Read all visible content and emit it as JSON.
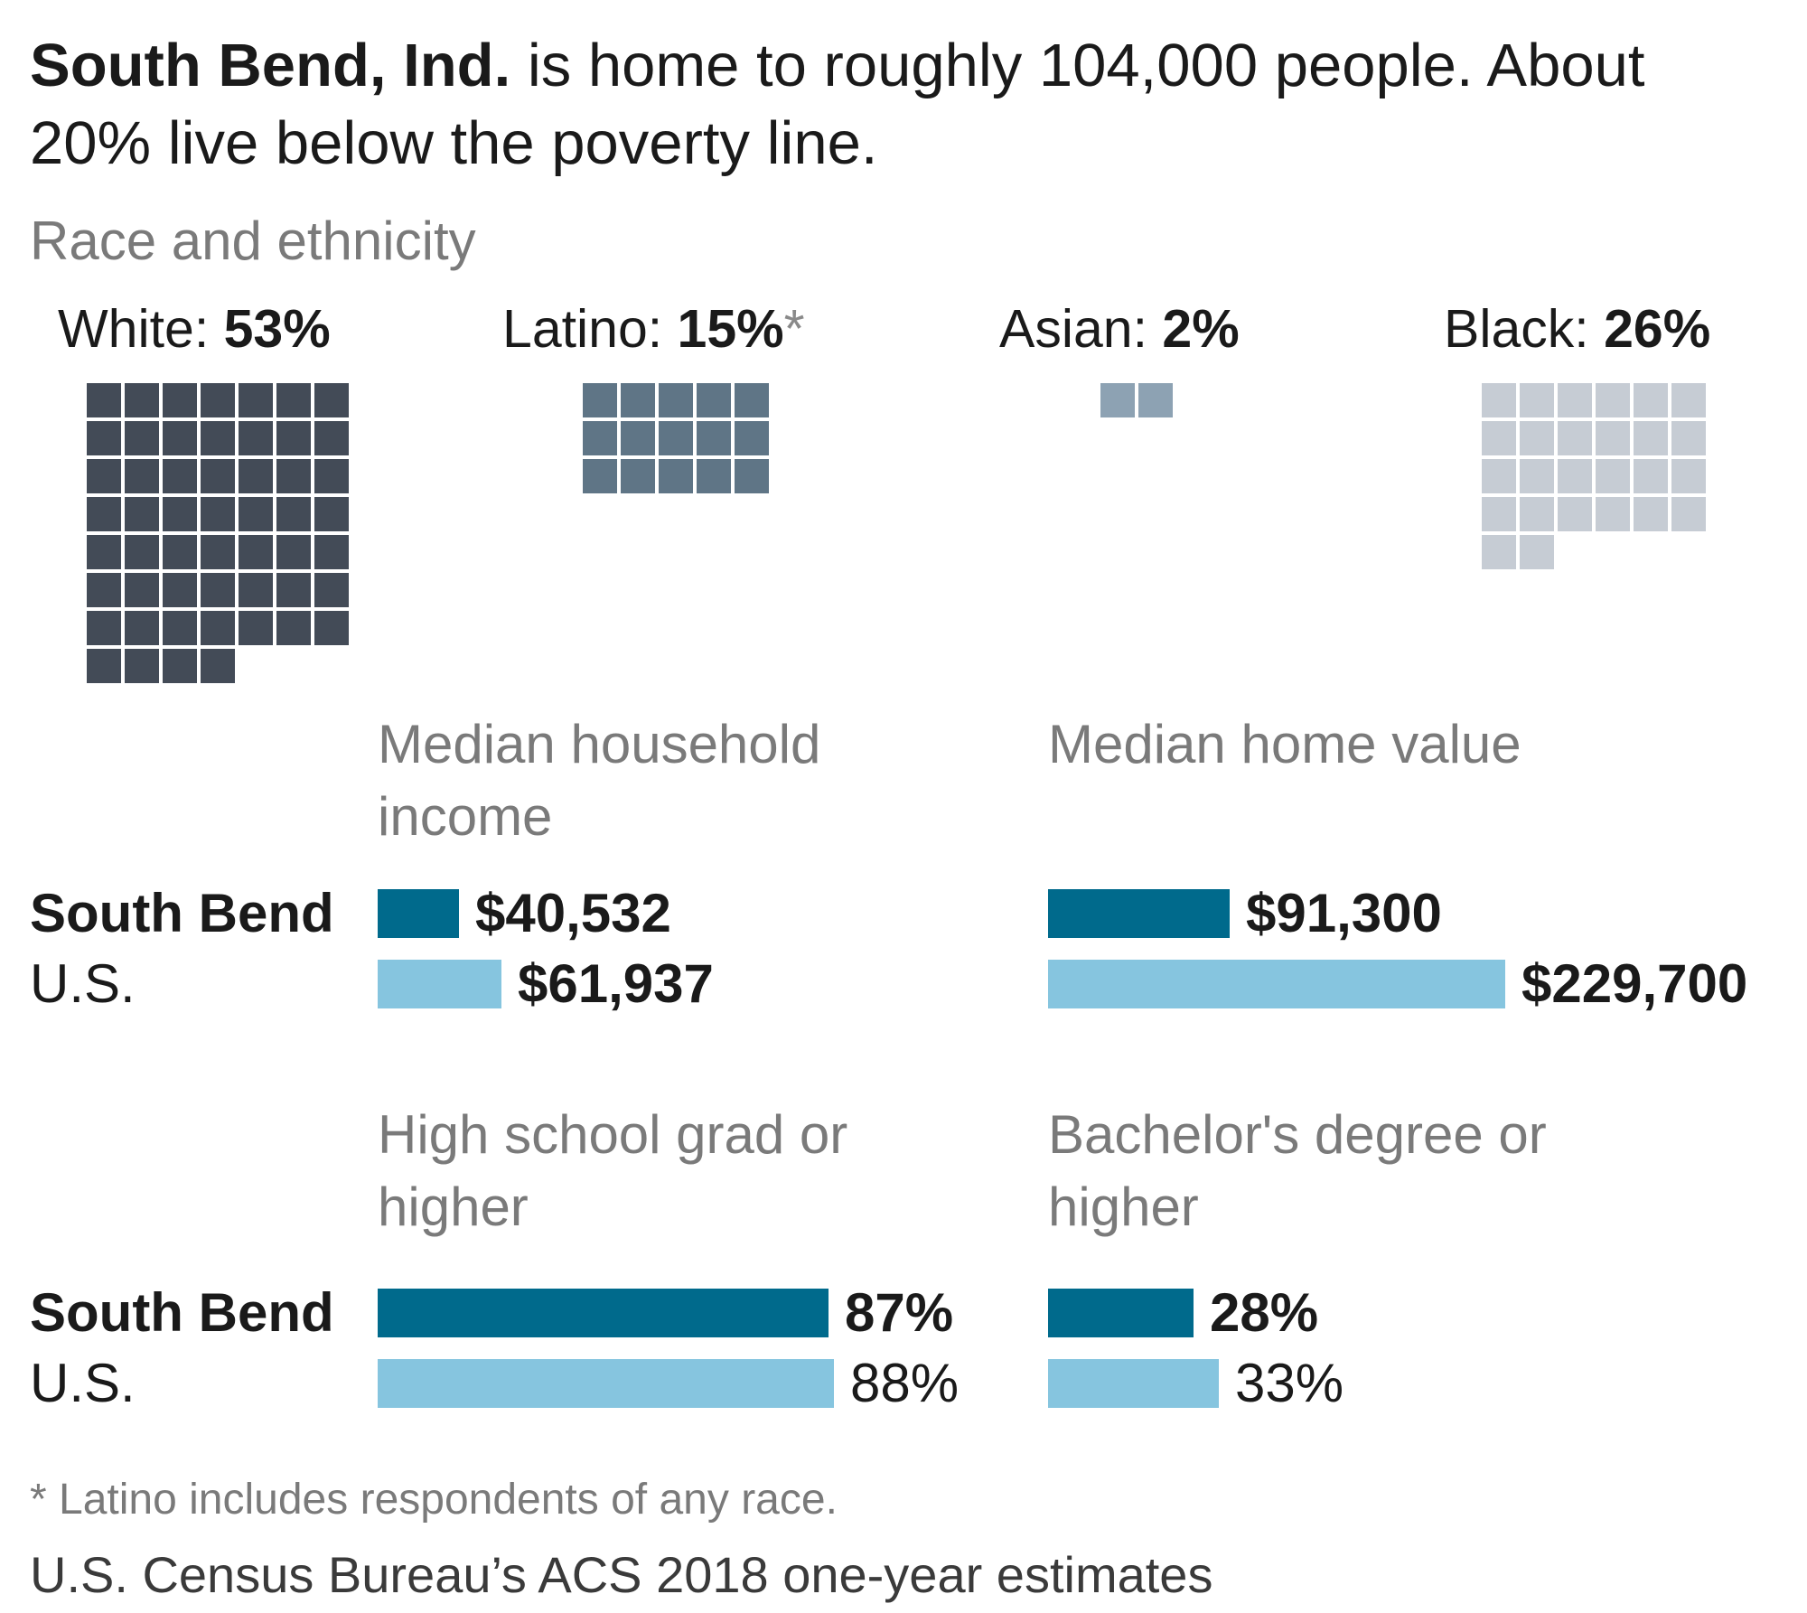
{
  "headline": {
    "bold": "South Bend, Ind.",
    "rest": " is home to roughly 104,000 people. About 20% live below the poverty line."
  },
  "race_label": "Race and ethnicity",
  "groups": [
    {
      "name": "White: ",
      "value": "53%",
      "asterisk": "",
      "cells": 53,
      "cols": 7,
      "color": "#434b57"
    },
    {
      "name": "Latino: ",
      "value": "15%",
      "asterisk": "*",
      "cells": 15,
      "cols": 5,
      "color": "#5f7586"
    },
    {
      "name": "Asian: ",
      "value": "2%",
      "asterisk": "",
      "cells": 2,
      "cols": 2,
      "color": "#8da2b3"
    },
    {
      "name": "Black: ",
      "value": "26%",
      "asterisk": "",
      "cells": 26,
      "cols": 6,
      "color": "#c6ccd4"
    }
  ],
  "row_labels": {
    "local": "South Bend",
    "us": "U.S."
  },
  "colors": {
    "local": "#006a8c",
    "us": "#86c5df"
  },
  "chart_data": [
    {
      "type": "waffle",
      "title": "Race and ethnicity",
      "categories": [
        "White",
        "Latino",
        "Asian",
        "Black"
      ],
      "values": [
        53,
        15,
        2,
        26
      ],
      "unit": "%"
    },
    {
      "type": "bar",
      "title": "Median household income",
      "categories": [
        "South Bend",
        "U.S."
      ],
      "values": [
        40532,
        61937
      ],
      "labels": [
        "$40,532",
        "$61,937"
      ]
    },
    {
      "type": "bar",
      "title": "Median home value",
      "categories": [
        "South Bend",
        "U.S."
      ],
      "values": [
        91300,
        229700
      ],
      "labels": [
        "$91,300",
        "$229,700"
      ]
    },
    {
      "type": "bar",
      "title": "High school grad or higher",
      "categories": [
        "South Bend",
        "U.S."
      ],
      "values": [
        87,
        88
      ],
      "labels": [
        "87%",
        "88%"
      ]
    },
    {
      "type": "bar",
      "title": "Bachelor's degree or higher",
      "categories": [
        "South Bend",
        "U.S."
      ],
      "values": [
        28,
        33
      ],
      "labels": [
        "28%",
        "33%"
      ]
    }
  ],
  "footnote": "* Latino includes respondents of any race.",
  "source": "U.S. Census Bureau’s ACS 2018 one-year estimates"
}
